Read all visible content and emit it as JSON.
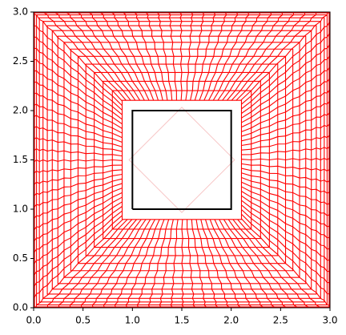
{
  "chart_data": {
    "type": "mesh",
    "xlim": [
      0,
      3
    ],
    "ylim": [
      0,
      3
    ],
    "xticks": [
      {
        "value": 0,
        "label": "0.0"
      },
      {
        "value": 0.5,
        "label": "0.5"
      },
      {
        "value": 1,
        "label": "1.0"
      },
      {
        "value": 1.5,
        "label": "1.5"
      },
      {
        "value": 2,
        "label": "2.0"
      },
      {
        "value": 2.5,
        "label": "2.5"
      },
      {
        "value": 3,
        "label": "3.0"
      }
    ],
    "yticks": [
      {
        "value": 0,
        "label": "0.0"
      },
      {
        "value": 0.5,
        "label": "0.5"
      },
      {
        "value": 1,
        "label": "1.0"
      },
      {
        "value": 1.5,
        "label": "1.5"
      },
      {
        "value": 2,
        "label": "2.0"
      },
      {
        "value": 2.5,
        "label": "2.5"
      },
      {
        "value": 3,
        "label": "3.0"
      }
    ],
    "mesh_color": "#ff0000",
    "outline": {
      "x": [
        1,
        2,
        2,
        1,
        1
      ],
      "y": [
        1,
        1,
        2,
        2,
        1
      ],
      "color": "#000000"
    }
  }
}
